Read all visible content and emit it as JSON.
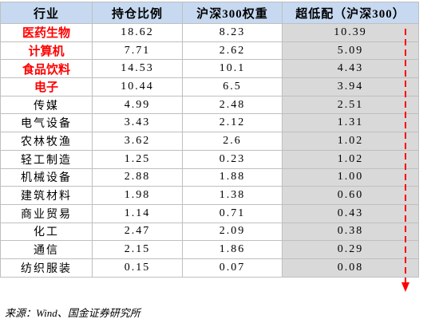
{
  "table": {
    "header": [
      "行业",
      "持仓比例",
      "沪深300权重",
      "超低配（沪深300）"
    ],
    "emphasis_color": "#ff0000",
    "rows": [
      {
        "cells": [
          "医药生物",
          "18.62",
          "8.23",
          "10.39"
        ],
        "emphasis": true
      },
      {
        "cells": [
          "计算机",
          "7.71",
          "2.62",
          "5.09"
        ],
        "emphasis": true
      },
      {
        "cells": [
          "食品饮料",
          "14.53",
          "10.1",
          "4.43"
        ],
        "emphasis": true
      },
      {
        "cells": [
          "电子",
          "10.44",
          "6.5",
          "3.94"
        ],
        "emphasis": true
      },
      {
        "cells": [
          "传媒",
          "4.99",
          "2.48",
          "2.51"
        ],
        "emphasis": false
      },
      {
        "cells": [
          "电气设备",
          "3.43",
          "2.12",
          "1.31"
        ],
        "emphasis": false
      },
      {
        "cells": [
          "农林牧渔",
          "3.62",
          "2.6",
          "1.02"
        ],
        "emphasis": false
      },
      {
        "cells": [
          "轻工制造",
          "1.25",
          "0.23",
          "1.02"
        ],
        "emphasis": false
      },
      {
        "cells": [
          "机械设备",
          "2.88",
          "1.88",
          "1.00"
        ],
        "emphasis": false
      },
      {
        "cells": [
          "建筑材料",
          "1.98",
          "1.38",
          "0.60"
        ],
        "emphasis": false
      },
      {
        "cells": [
          "商业贸易",
          "1.14",
          "0.71",
          "0.43"
        ],
        "emphasis": false
      },
      {
        "cells": [
          "化工",
          "2.47",
          "2.09",
          "0.38"
        ],
        "emphasis": false
      },
      {
        "cells": [
          "通信",
          "2.15",
          "1.86",
          "0.29"
        ],
        "emphasis": false
      },
      {
        "cells": [
          "纺织服装",
          "0.15",
          "0.07",
          "0.08"
        ],
        "emphasis": false
      }
    ],
    "source": "来源：Wind、国金证券研究所"
  }
}
